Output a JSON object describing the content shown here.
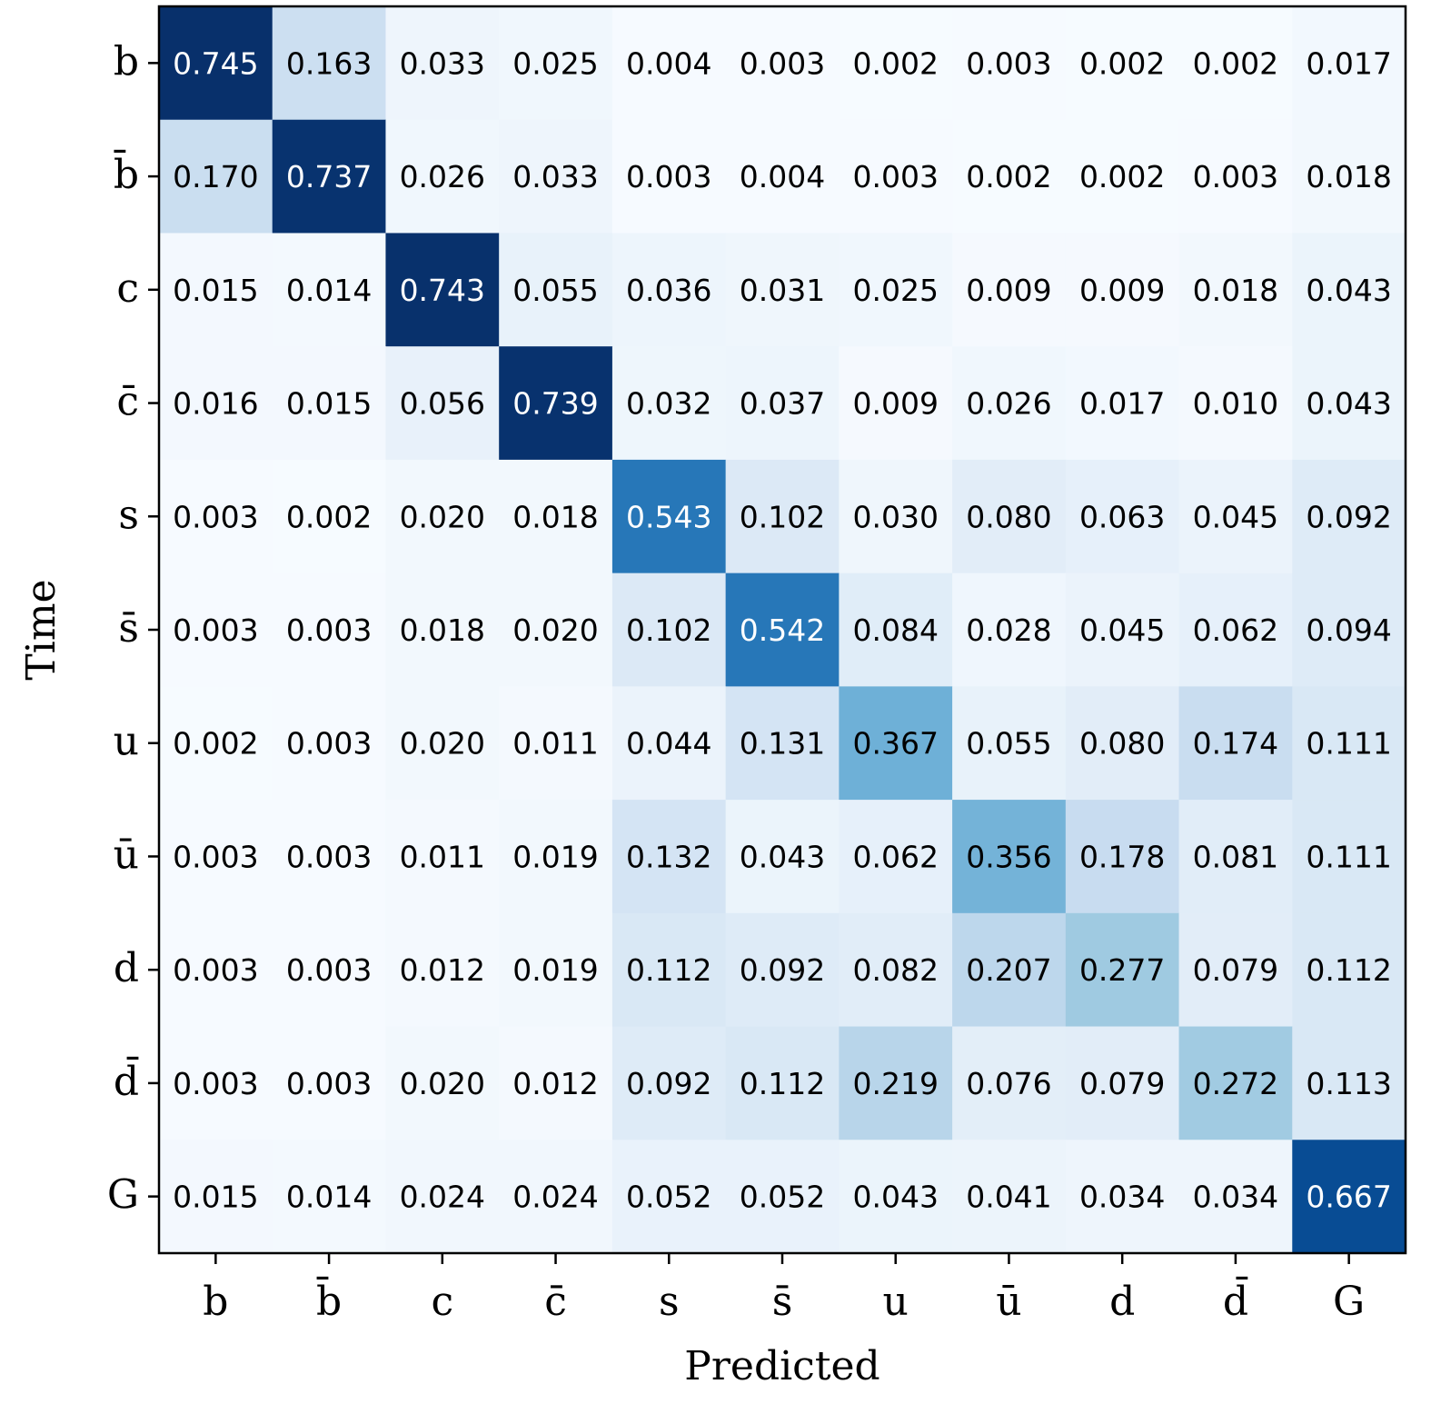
{
  "chart_data": {
    "type": "heatmap",
    "title": "",
    "xlabel": "Predicted",
    "ylabel": "Time",
    "x_categories": [
      "b",
      "b̄",
      "c",
      "c̄",
      "s",
      "s̄",
      "u",
      "ū",
      "d",
      "d̄",
      "G"
    ],
    "y_categories": [
      "b",
      "b̄",
      "c",
      "c̄",
      "s",
      "s̄",
      "u",
      "ū",
      "d",
      "d̄",
      "G"
    ],
    "values": [
      [
        0.745,
        0.163,
        0.033,
        0.025,
        0.004,
        0.003,
        0.002,
        0.003,
        0.002,
        0.002,
        0.017
      ],
      [
        0.17,
        0.737,
        0.026,
        0.033,
        0.003,
        0.004,
        0.003,
        0.002,
        0.002,
        0.003,
        0.018
      ],
      [
        0.015,
        0.014,
        0.743,
        0.055,
        0.036,
        0.031,
        0.025,
        0.009,
        0.009,
        0.018,
        0.043
      ],
      [
        0.016,
        0.015,
        0.056,
        0.739,
        0.032,
        0.037,
        0.009,
        0.026,
        0.017,
        0.01,
        0.043
      ],
      [
        0.003,
        0.002,
        0.02,
        0.018,
        0.543,
        0.102,
        0.03,
        0.08,
        0.063,
        0.045,
        0.092
      ],
      [
        0.003,
        0.003,
        0.018,
        0.02,
        0.102,
        0.542,
        0.084,
        0.028,
        0.045,
        0.062,
        0.094
      ],
      [
        0.002,
        0.003,
        0.02,
        0.011,
        0.044,
        0.131,
        0.367,
        0.055,
        0.08,
        0.174,
        0.111
      ],
      [
        0.003,
        0.003,
        0.011,
        0.019,
        0.132,
        0.043,
        0.062,
        0.356,
        0.178,
        0.081,
        0.111
      ],
      [
        0.003,
        0.003,
        0.012,
        0.019,
        0.112,
        0.092,
        0.082,
        0.207,
        0.277,
        0.079,
        0.112
      ],
      [
        0.003,
        0.003,
        0.02,
        0.012,
        0.092,
        0.112,
        0.219,
        0.076,
        0.079,
        0.272,
        0.113
      ],
      [
        0.015,
        0.014,
        0.024,
        0.024,
        0.052,
        0.052,
        0.043,
        0.041,
        0.034,
        0.034,
        0.667
      ]
    ],
    "value_format": "0.000",
    "colormap": "Blues",
    "color_range": [
      0,
      0.745
    ],
    "colors": {
      "low": "#f7fbff",
      "high": "#08306b",
      "text_dark": "#000000",
      "text_light": "#ffffff",
      "frame": "#000000"
    },
    "grid": false
  }
}
